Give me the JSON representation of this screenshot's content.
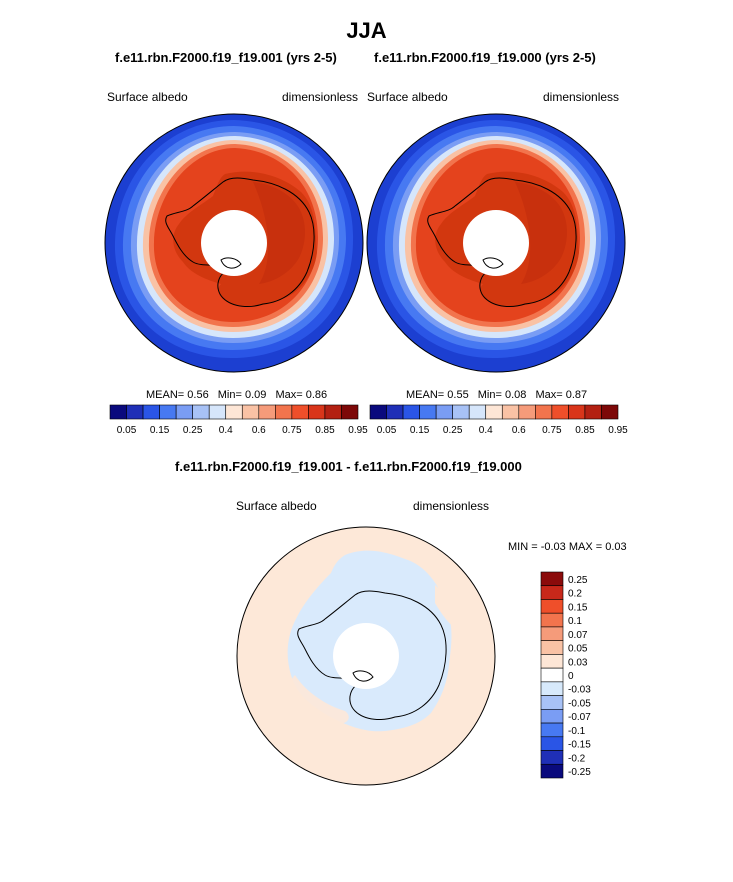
{
  "figure": {
    "title": "JJA",
    "panels": [
      {
        "subtitle": "f.e11.rbn.F2000.f19_f19.001 (yrs 2-5)",
        "variable": "Surface albedo",
        "units": "dimensionless",
        "stats": {
          "mean_label": "MEAN=",
          "mean": "0.56",
          "min_label": "Min=",
          "min": "0.09",
          "max_label": "Max=",
          "max": "0.86"
        }
      },
      {
        "subtitle": "f.e11.rbn.F2000.f19_f19.000 (yrs 2-5)",
        "variable": "Surface albedo",
        "units": "dimensionless",
        "stats": {
          "mean_label": "MEAN=",
          "mean": "0.55",
          "min_label": "Min=",
          "min": "0.08",
          "max_label": "Max=",
          "max": "0.87"
        }
      },
      {
        "subtitle": "f.e11.rbn.F2000.f19_f19.001 - f.e11.rbn.F2000.f19_f19.000",
        "variable": "Surface albedo",
        "units": "dimensionless",
        "stats_text": "MIN =  -0.03 MAX =   0.03"
      }
    ],
    "colors": {
      "abs_colorbar": [
        "#0a0a7d",
        "#1f2fb7",
        "#2a55e6",
        "#4779f2",
        "#7a9df4",
        "#a8c2f6",
        "#d6e6fb",
        "#fde6d6",
        "#f9c2a5",
        "#f59b7a",
        "#f2744d",
        "#ef4f2a",
        "#d9351a",
        "#b32012",
        "#7d0808"
      ],
      "diff_colorbar": [
        "#0a0a7d",
        "#1f2fb7",
        "#2a55e6",
        "#4779f2",
        "#7a9df4",
        "#a8c2f6",
        "#d7e9fb",
        "#ffffff",
        "#fde6d6",
        "#f9c2a5",
        "#f59b7a",
        "#f2744d",
        "#ef4f2a",
        "#c8281a",
        "#8b0b0b"
      ],
      "ocean_outer": "#1c3fd1",
      "ice_core": "#e4431d",
      "land_dark": "#d2370f",
      "diff_bg": "#fde8d8",
      "diff_ice": "#d9eafc"
    }
  },
  "chart_data": [
    {
      "type": "heatmap",
      "projection": "south-polar-stereographic",
      "title": "f.e11.rbn.F2000.f19_f19.001 (yrs 2-5)",
      "season": "JJA",
      "variable": "Surface albedo",
      "units": "dimensionless",
      "stats": {
        "mean": 0.56,
        "min": 0.09,
        "max": 0.86
      },
      "colorbar_ticks": [
        "0.05",
        "0.15",
        "0.25",
        "0.4",
        "0.6",
        "0.75",
        "0.85",
        "0.95"
      ]
    },
    {
      "type": "heatmap",
      "projection": "south-polar-stereographic",
      "title": "f.e11.rbn.F2000.f19_f19.000 (yrs 2-5)",
      "season": "JJA",
      "variable": "Surface albedo",
      "units": "dimensionless",
      "stats": {
        "mean": 0.55,
        "min": 0.08,
        "max": 0.87
      },
      "colorbar_ticks": [
        "0.05",
        "0.15",
        "0.25",
        "0.4",
        "0.6",
        "0.75",
        "0.85",
        "0.95"
      ]
    },
    {
      "type": "heatmap",
      "projection": "south-polar-stereographic",
      "title": "f.e11.rbn.F2000.f19_f19.001 - f.e11.rbn.F2000.f19_f19.000",
      "season": "JJA",
      "variable": "Surface albedo",
      "units": "dimensionless",
      "stats": {
        "min": -0.03,
        "max": 0.03
      },
      "colorbar_ticks": [
        "0.25",
        "0.2",
        "0.15",
        "0.1",
        "0.07",
        "0.05",
        "0.03",
        "0",
        "-0.03",
        "-0.05",
        "-0.07",
        "-0.1",
        "-0.15",
        "-0.2",
        "-0.25"
      ]
    }
  ]
}
